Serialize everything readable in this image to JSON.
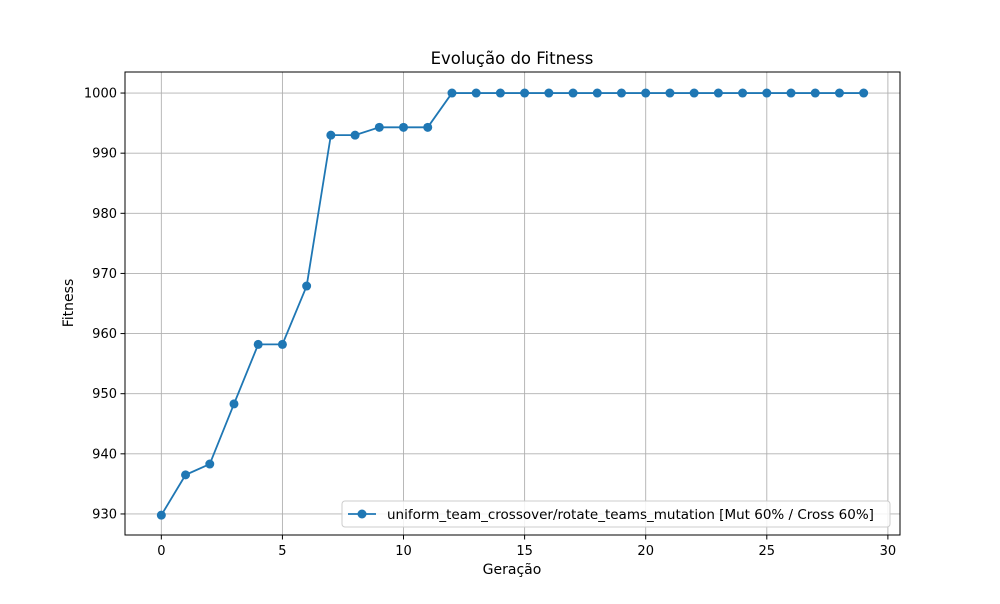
{
  "chart_data": {
    "type": "line",
    "title": "Evolução do Fitness",
    "xlabel": "Geração",
    "ylabel": "Fitness",
    "xlim": [
      -1.5,
      30.5
    ],
    "ylim": [
      926.5,
      1003.5
    ],
    "xticks": [
      0,
      5,
      10,
      15,
      20,
      25,
      30
    ],
    "yticks": [
      930,
      940,
      950,
      960,
      970,
      980,
      990,
      1000
    ],
    "grid": true,
    "legend_position": "bottom-right",
    "series": [
      {
        "name": "uniform_team_crossover/rotate_teams_mutation [Mut 60% / Cross 60%]",
        "color": "#1f77b4",
        "marker": "circle",
        "x": [
          0,
          1,
          2,
          3,
          4,
          5,
          6,
          7,
          8,
          9,
          10,
          11,
          12,
          13,
          14,
          15,
          16,
          17,
          18,
          19,
          20,
          21,
          22,
          23,
          24,
          25,
          26,
          27,
          28,
          29
        ],
        "y": [
          929.8,
          936.5,
          938.3,
          948.3,
          958.2,
          958.2,
          967.9,
          993.0,
          993.0,
          994.3,
          994.3,
          994.3,
          1000,
          1000,
          1000,
          1000,
          1000,
          1000,
          1000,
          1000,
          1000,
          1000,
          1000,
          1000,
          1000,
          1000,
          1000,
          1000,
          1000,
          1000
        ]
      }
    ]
  }
}
